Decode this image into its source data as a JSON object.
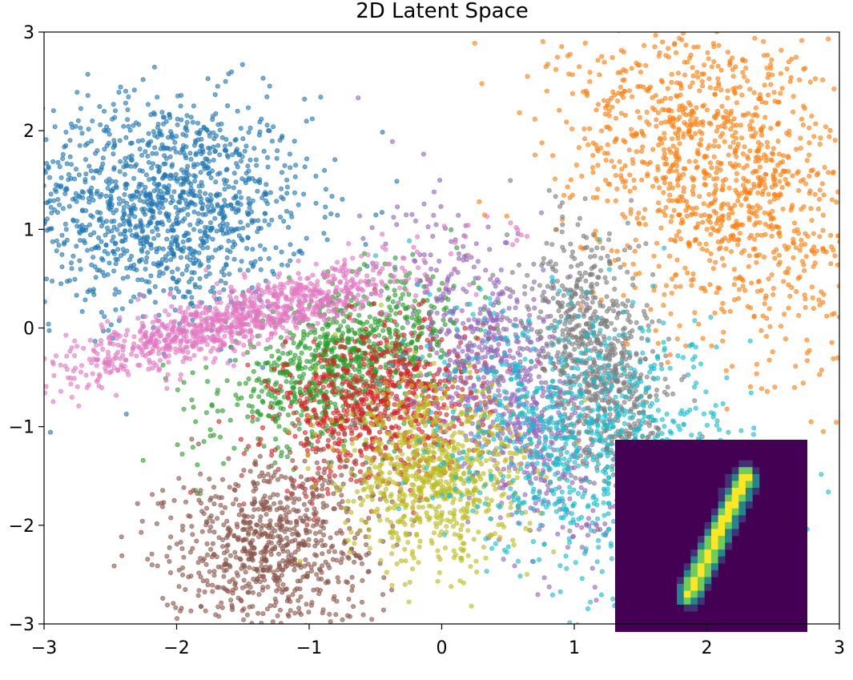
{
  "chart_data": {
    "type": "scatter",
    "title": "2D Latent Space",
    "xlabel": "",
    "ylabel": "",
    "xlim": [
      -3,
      3
    ],
    "ylim": [
      -3,
      3
    ],
    "xticks": [
      -3,
      -2,
      -1,
      0,
      1,
      2,
      3
    ],
    "xtick_labels": [
      "−3",
      "−2",
      "−1",
      "0",
      "1",
      "2",
      "3"
    ],
    "yticks": [
      -3,
      -2,
      -1,
      0,
      1,
      2,
      3
    ],
    "ytick_labels": [
      "−3",
      "−2",
      "−1",
      "0",
      "1",
      "2",
      "3"
    ],
    "grid": false,
    "legend": "none",
    "marker": "circle",
    "alpha": 0.6,
    "series": [
      {
        "color": "#1f77b4",
        "cluster": {
          "cx": -2.1,
          "cy": 1.25,
          "sx": 0.55,
          "sy": 0.55,
          "rho": 0.0,
          "n": 1300
        }
      },
      {
        "color": "#ff7f0e",
        "cluster": {
          "cx": 2.1,
          "cy": 1.6,
          "sx": 0.6,
          "sy": 0.9,
          "rho": -0.4,
          "n": 1300
        }
      },
      {
        "color": "#2ca02c",
        "cluster": {
          "cx": -0.75,
          "cy": -0.35,
          "sx": 0.45,
          "sy": 0.4,
          "rho": 0.5,
          "n": 900
        }
      },
      {
        "color": "#d62728",
        "cluster": {
          "cx": -0.45,
          "cy": -0.8,
          "sx": 0.4,
          "sy": 0.4,
          "rho": 0.2,
          "n": 800
        }
      },
      {
        "color": "#9467bd",
        "cluster": {
          "cx": 0.5,
          "cy": -0.6,
          "sx": 0.35,
          "sy": 0.8,
          "rho": -0.6,
          "n": 800
        }
      },
      {
        "color": "#8c564b",
        "cluster": {
          "cx": -1.3,
          "cy": -2.2,
          "sx": 0.4,
          "sy": 0.45,
          "rho": 0.1,
          "n": 800
        }
      },
      {
        "color": "#e377c2",
        "cluster": {
          "cx": -1.5,
          "cy": 0.1,
          "sx": 0.65,
          "sy": 0.3,
          "rho": 0.85,
          "n": 1000
        }
      },
      {
        "color": "#7f7f7f",
        "cluster": {
          "cx": 1.2,
          "cy": -0.35,
          "sx": 0.25,
          "sy": 0.65,
          "rho": -0.4,
          "n": 800
        }
      },
      {
        "color": "#bcbd22",
        "cluster": {
          "cx": -0.05,
          "cy": -1.5,
          "sx": 0.35,
          "sy": 0.45,
          "rho": 0.0,
          "n": 800
        }
      },
      {
        "color": "#17becf",
        "cluster": {
          "cx": 1.2,
          "cy": -1.2,
          "sx": 0.6,
          "sy": 0.7,
          "rho": -0.3,
          "n": 1000
        }
      }
    ],
    "inset": {
      "type": "image",
      "colormap": "viridis",
      "content": "digit 1"
    }
  }
}
